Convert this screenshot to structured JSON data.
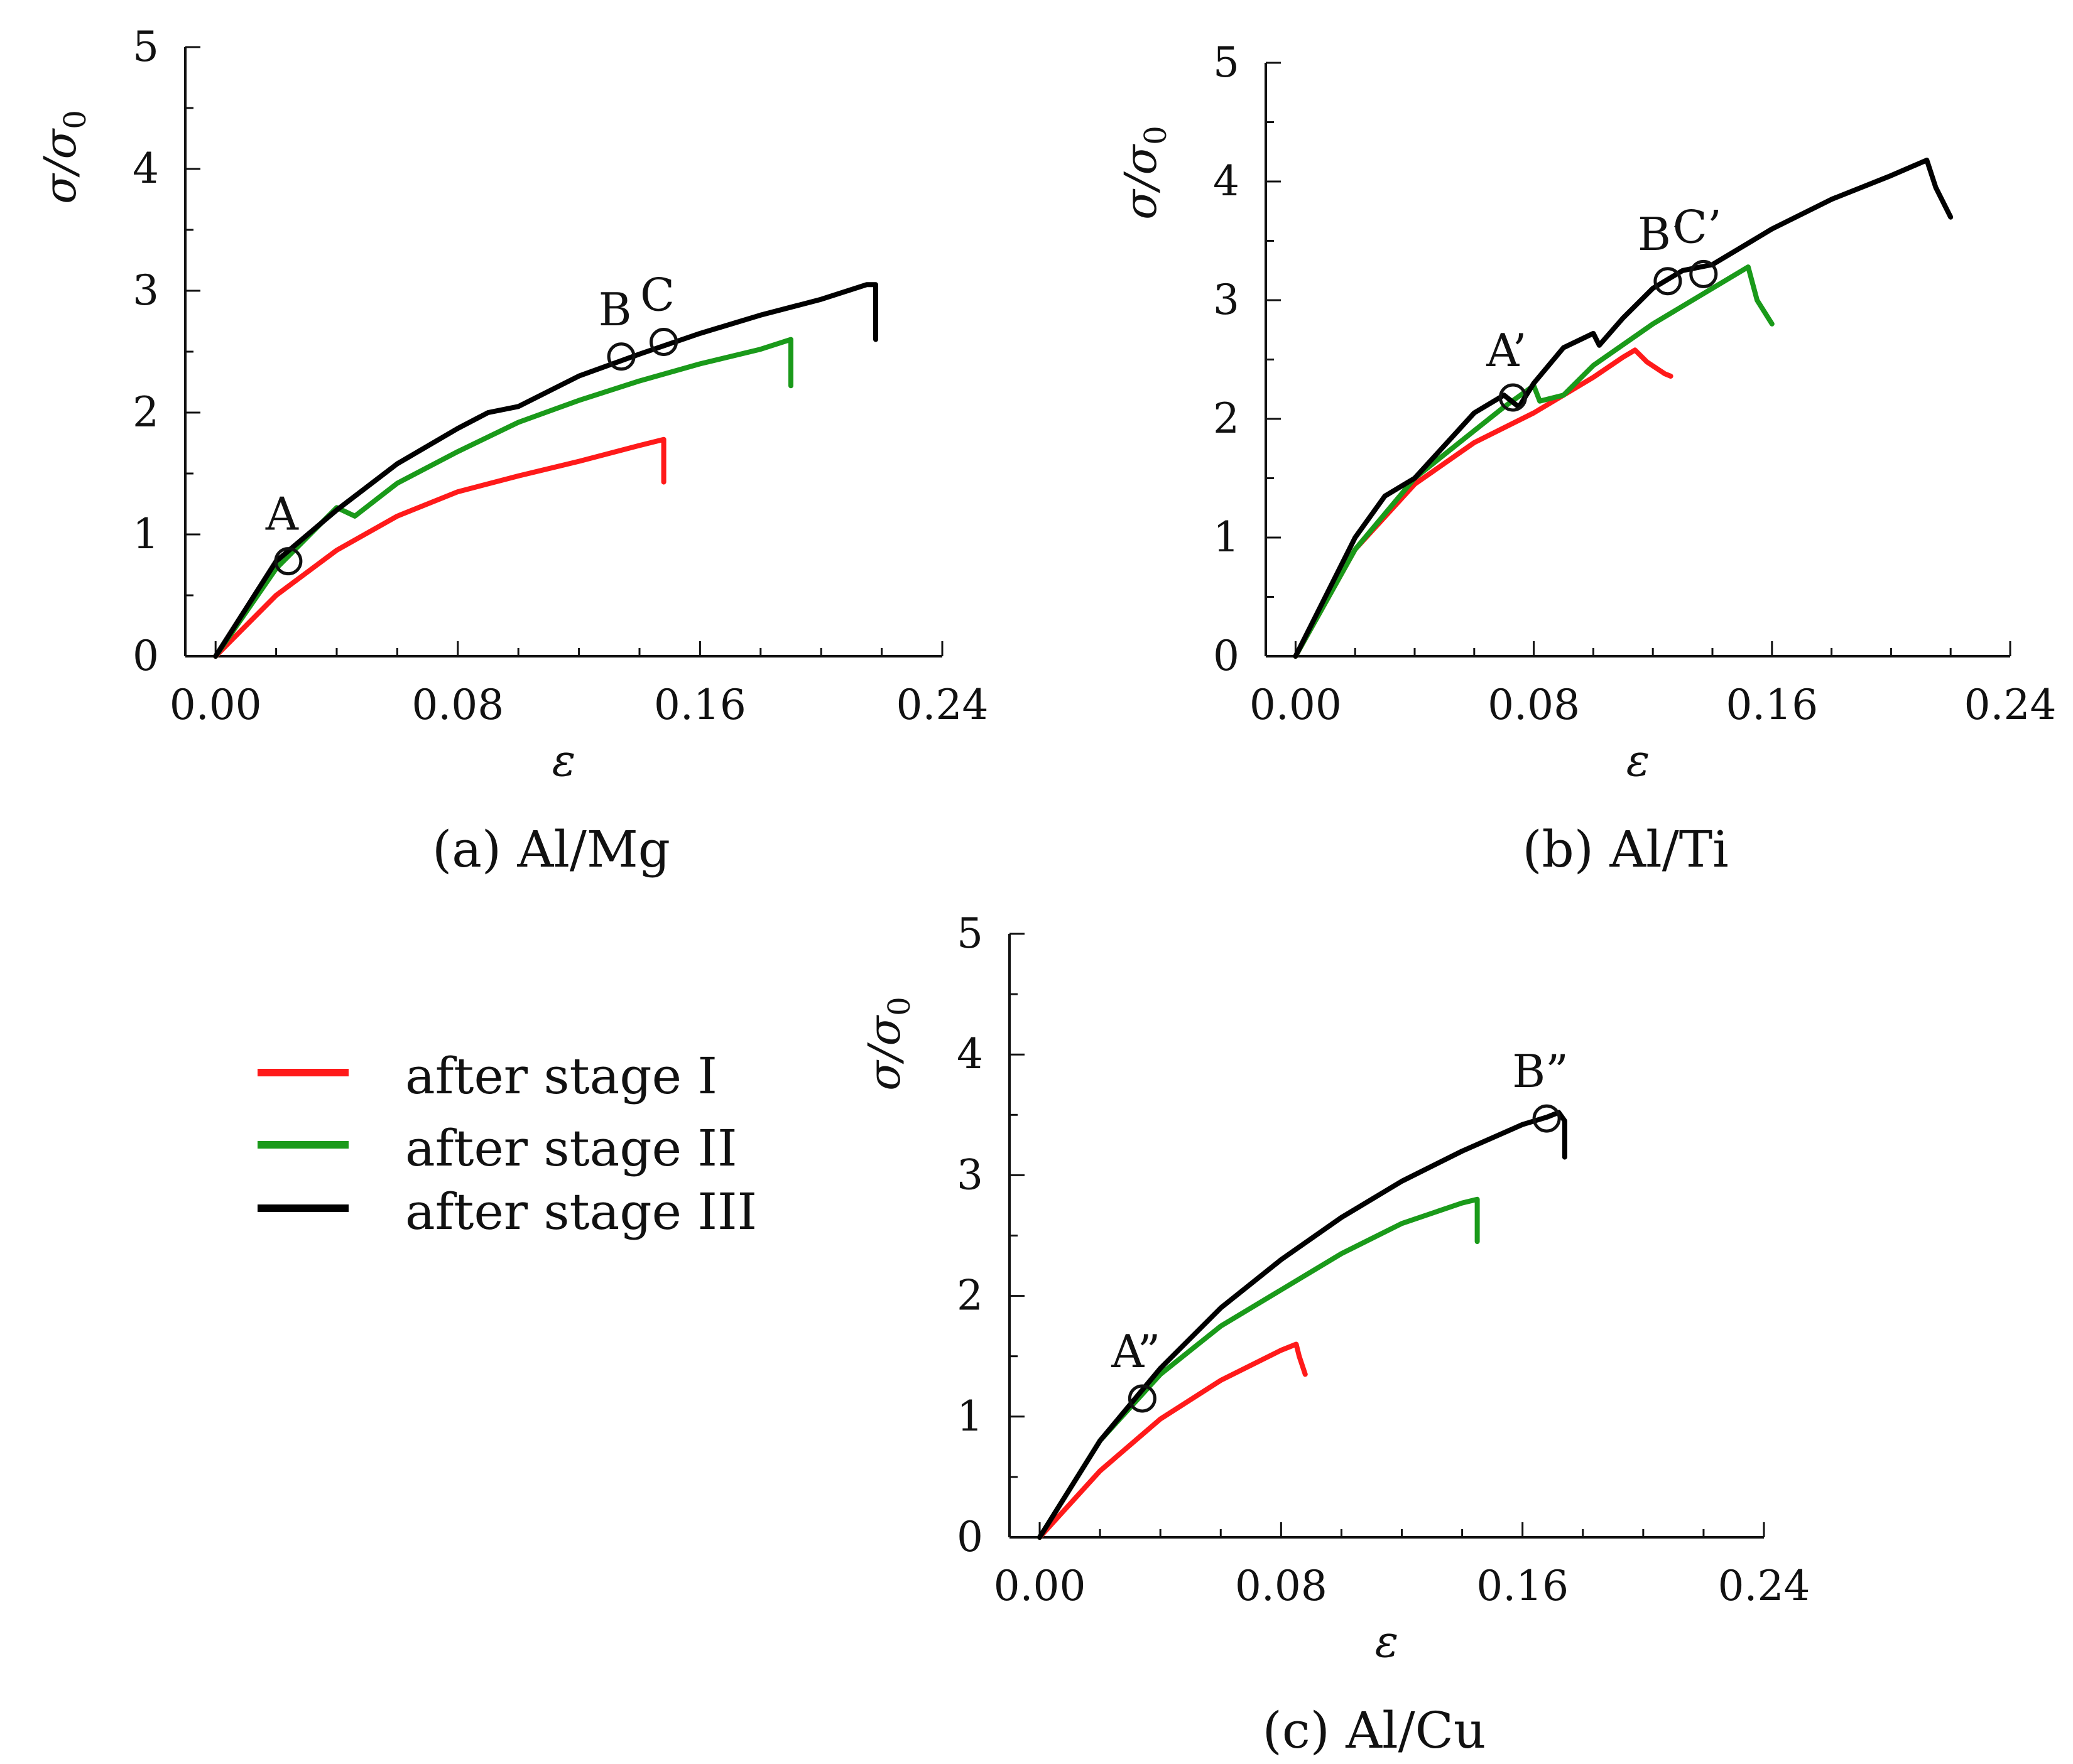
{
  "legend": [
    {
      "name": "after stage I",
      "color": "#ff1a1a"
    },
    {
      "name": "after stage II",
      "color": "#1a9a1a"
    },
    {
      "name": "after stage III",
      "color": "#000000"
    }
  ],
  "chart_data": [
    {
      "type": "line",
      "caption": "(a) Al/Mg",
      "xlabel": "ε",
      "ylabel_main": "σ",
      "ylabel_sub": "0",
      "xlim": [
        -0.01,
        0.24
      ],
      "ylim": [
        0,
        5
      ],
      "xticks": [
        "0.00",
        "0.08",
        "0.16",
        "0.24"
      ],
      "yticks": [
        "0",
        "1",
        "2",
        "3",
        "4",
        "5"
      ],
      "grid": false,
      "series": [
        {
          "name": "after stage I",
          "color": "#ff1a1a",
          "x": [
            0,
            0.02,
            0.04,
            0.06,
            0.08,
            0.1,
            0.12,
            0.14,
            0.148,
            0.148
          ],
          "y": [
            0,
            0.5,
            0.87,
            1.15,
            1.35,
            1.48,
            1.6,
            1.73,
            1.78,
            1.43
          ]
        },
        {
          "name": "after stage II",
          "color": "#1a9a1a",
          "x": [
            0,
            0.02,
            0.04,
            0.046,
            0.06,
            0.08,
            0.1,
            0.12,
            0.14,
            0.16,
            0.18,
            0.19,
            0.19
          ],
          "y": [
            0,
            0.72,
            1.22,
            1.15,
            1.42,
            1.68,
            1.92,
            2.1,
            2.26,
            2.4,
            2.52,
            2.6,
            2.22
          ]
        },
        {
          "name": "after stage III",
          "color": "#000000",
          "x": [
            0,
            0.02,
            0.04,
            0.06,
            0.08,
            0.09,
            0.1,
            0.12,
            0.14,
            0.16,
            0.18,
            0.2,
            0.215,
            0.218,
            0.218
          ],
          "y": [
            0,
            0.78,
            1.2,
            1.58,
            1.87,
            2.0,
            2.05,
            2.3,
            2.48,
            2.65,
            2.8,
            2.93,
            3.05,
            3.05,
            2.6
          ]
        }
      ],
      "annotations": [
        {
          "label": "A",
          "x": 0.024,
          "y": 0.78
        },
        {
          "label": "B",
          "x": 0.134,
          "y": 2.46
        },
        {
          "label": "C",
          "x": 0.148,
          "y": 2.58
        }
      ]
    },
    {
      "type": "line",
      "caption": "(b) Al/Ti",
      "xlabel": "ε",
      "ylabel_main": "σ",
      "ylabel_sub": "0",
      "xlim": [
        -0.01,
        0.24
      ],
      "ylim": [
        0,
        5
      ],
      "xticks": [
        "0.00",
        "0.08",
        "0.16",
        "0.24"
      ],
      "yticks": [
        "0",
        "1",
        "2",
        "3",
        "4",
        "5"
      ],
      "grid": false,
      "series": [
        {
          "name": "after stage I",
          "color": "#ff1a1a",
          "x": [
            0,
            0.02,
            0.04,
            0.06,
            0.08,
            0.1,
            0.11,
            0.114,
            0.118,
            0.124,
            0.126
          ],
          "y": [
            0,
            0.9,
            1.45,
            1.8,
            2.05,
            2.35,
            2.52,
            2.58,
            2.48,
            2.38,
            2.36
          ]
        },
        {
          "name": "after stage II",
          "color": "#1a9a1a",
          "x": [
            0,
            0.02,
            0.04,
            0.06,
            0.07,
            0.08,
            0.082,
            0.09,
            0.1,
            0.12,
            0.14,
            0.152,
            0.155,
            0.16
          ],
          "y": [
            0,
            0.9,
            1.5,
            1.9,
            2.1,
            2.28,
            2.15,
            2.2,
            2.45,
            2.8,
            3.1,
            3.28,
            3.0,
            2.8
          ]
        },
        {
          "name": "after stage III",
          "color": "#000000",
          "x": [
            0,
            0.02,
            0.03,
            0.04,
            0.06,
            0.07,
            0.075,
            0.08,
            0.09,
            0.1,
            0.102,
            0.11,
            0.12,
            0.13,
            0.14,
            0.16,
            0.18,
            0.2,
            0.212,
            0.215,
            0.22
          ],
          "y": [
            0,
            1.0,
            1.35,
            1.5,
            2.05,
            2.2,
            2.1,
            2.3,
            2.6,
            2.72,
            2.62,
            2.85,
            3.1,
            3.25,
            3.3,
            3.6,
            3.85,
            4.05,
            4.18,
            3.95,
            3.7
          ]
        }
      ],
      "annotations": [
        {
          "label": "A’",
          "x": 0.073,
          "y": 2.18
        },
        {
          "label": "B’",
          "x": 0.125,
          "y": 3.16
        },
        {
          "label": "C’",
          "x": 0.137,
          "y": 3.22
        }
      ]
    },
    {
      "type": "line",
      "caption": "(c) Al/Cu",
      "xlabel": "ε",
      "ylabel_main": "σ",
      "ylabel_sub": "0",
      "xlim": [
        -0.01,
        0.24
      ],
      "ylim": [
        0,
        5
      ],
      "xticks": [
        "0.00",
        "0.08",
        "0.16",
        "0.24"
      ],
      "yticks": [
        "0",
        "1",
        "2",
        "3",
        "4",
        "5"
      ],
      "grid": false,
      "series": [
        {
          "name": "after stage I",
          "color": "#ff1a1a",
          "x": [
            0,
            0.02,
            0.04,
            0.06,
            0.08,
            0.085,
            0.086,
            0.088
          ],
          "y": [
            0,
            0.55,
            0.98,
            1.3,
            1.55,
            1.6,
            1.5,
            1.35
          ]
        },
        {
          "name": "after stage II",
          "color": "#1a9a1a",
          "x": [
            0,
            0.02,
            0.04,
            0.06,
            0.08,
            0.1,
            0.12,
            0.14,
            0.145,
            0.145
          ],
          "y": [
            0,
            0.8,
            1.35,
            1.75,
            2.05,
            2.35,
            2.6,
            2.77,
            2.8,
            2.45
          ]
        },
        {
          "name": "after stage III",
          "color": "#000000",
          "x": [
            0,
            0.02,
            0.04,
            0.06,
            0.08,
            0.1,
            0.12,
            0.14,
            0.16,
            0.168,
            0.172,
            0.174,
            0.174
          ],
          "y": [
            0,
            0.8,
            1.4,
            1.9,
            2.3,
            2.65,
            2.95,
            3.2,
            3.42,
            3.48,
            3.52,
            3.45,
            3.15
          ]
        }
      ],
      "annotations": [
        {
          "label": "A”",
          "x": 0.034,
          "y": 1.15
        },
        {
          "label": "B”",
          "x": 0.168,
          "y": 3.47
        }
      ]
    }
  ]
}
